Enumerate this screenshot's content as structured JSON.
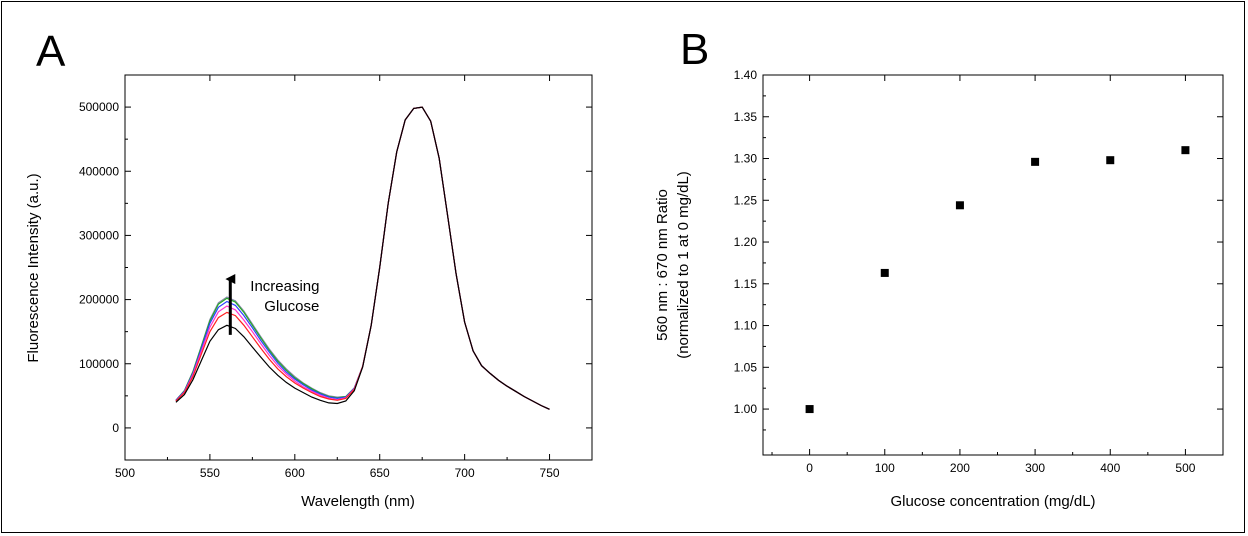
{
  "chart_data": [
    {
      "panel": "A",
      "type": "line",
      "xlabel": "Wavelength (nm)",
      "ylabel": "Fluorescence Intensity (a.u.)",
      "xlim": [
        500,
        775
      ],
      "ylim": [
        -50000,
        550000
      ],
      "xticks": [
        500,
        550,
        600,
        650,
        700,
        750
      ],
      "yticks": [
        0,
        100000,
        200000,
        300000,
        400000,
        500000
      ],
      "annotation": [
        "Increasing",
        "Glucose"
      ],
      "annotation_x": 562,
      "arrow_from": 145000,
      "arrow_to": 232000,
      "x": [
        530,
        535,
        540,
        545,
        550,
        555,
        560,
        565,
        570,
        575,
        580,
        585,
        590,
        595,
        600,
        605,
        610,
        615,
        620,
        625,
        630,
        635,
        640,
        645,
        650,
        655,
        660,
        665,
        670,
        675,
        680,
        685,
        690,
        695,
        700,
        705,
        710,
        715,
        720,
        725,
        730,
        735,
        740,
        745,
        750
      ],
      "series": [
        {
          "color": "#000000",
          "values": [
            40000,
            52000,
            75000,
            105000,
            135000,
            153000,
            160000,
            155000,
            142000,
            126000,
            110000,
            95000,
            82000,
            71000,
            62000,
            55000,
            48000,
            43000,
            39000,
            38000,
            42000,
            58000,
            95000,
            160000,
            250000,
            350000,
            430000,
            480000,
            498000,
            500000,
            478000,
            420000,
            330000,
            240000,
            165000,
            120000,
            97000,
            85000,
            74000,
            65000,
            57000,
            49000,
            42000,
            35000,
            29000
          ]
        },
        {
          "color": "#ff2020",
          "values": [
            42000,
            55000,
            80000,
            115000,
            150000,
            172000,
            180000,
            175000,
            160000,
            142000,
            124000,
            107000,
            92000,
            80000,
            70000,
            62000,
            55000,
            49000,
            45000,
            43000,
            46000,
            60000,
            96000,
            160000,
            250000,
            350000,
            430000,
            480000,
            498000,
            500000,
            478000,
            420000,
            330000,
            240000,
            165000,
            120000,
            97000,
            85000,
            74000,
            65000,
            57000,
            49000,
            42000,
            35000,
            29000
          ]
        },
        {
          "color": "#ff33cc",
          "values": [
            42000,
            56000,
            83000,
            120000,
            157000,
            181000,
            190000,
            184000,
            168000,
            150000,
            131000,
            113000,
            97000,
            84000,
            73000,
            64000,
            57000,
            51000,
            46000,
            44000,
            47000,
            61000,
            96000,
            160000,
            250000,
            350000,
            430000,
            480000,
            498000,
            500000,
            478000,
            420000,
            330000,
            240000,
            165000,
            120000,
            97000,
            85000,
            74000,
            65000,
            57000,
            49000,
            42000,
            35000,
            29000
          ]
        },
        {
          "color": "#2a40ff",
          "values": [
            43000,
            57000,
            85000,
            124000,
            163000,
            188000,
            197000,
            191000,
            175000,
            156000,
            136000,
            118000,
            101000,
            87000,
            76000,
            67000,
            59000,
            53000,
            48000,
            46000,
            48000,
            62000,
            96000,
            160000,
            250000,
            350000,
            430000,
            480000,
            498000,
            500000,
            478000,
            420000,
            330000,
            240000,
            165000,
            120000,
            97000,
            85000,
            74000,
            65000,
            57000,
            49000,
            42000,
            35000,
            29000
          ]
        },
        {
          "color": "#22aa22",
          "values": [
            43000,
            58000,
            87000,
            127000,
            167000,
            193000,
            202000,
            196000,
            180000,
            160000,
            140000,
            121000,
            104000,
            90000,
            78000,
            69000,
            61000,
            54000,
            49000,
            47000,
            49000,
            62000,
            96000,
            160000,
            250000,
            350000,
            430000,
            480000,
            498000,
            500000,
            478000,
            420000,
            330000,
            240000,
            165000,
            120000,
            97000,
            85000,
            74000,
            65000,
            57000,
            49000,
            42000,
            35000,
            29000
          ]
        },
        {
          "color": "#8888aa",
          "values": [
            43000,
            58000,
            88000,
            128000,
            169000,
            195000,
            204000,
            198000,
            182000,
            162000,
            142000,
            123000,
            106000,
            92000,
            80000,
            70000,
            62000,
            55000,
            50000,
            48000,
            49000,
            62000,
            96000,
            160000,
            250000,
            350000,
            430000,
            480000,
            498000,
            500000,
            478000,
            420000,
            330000,
            240000,
            165000,
            120000,
            97000,
            85000,
            74000,
            65000,
            57000,
            49000,
            42000,
            35000,
            29000
          ]
        }
      ]
    },
    {
      "panel": "B",
      "type": "scatter",
      "xlabel": "Glucose concentration (mg/dL)",
      "ylabel": [
        "560 nm : 670 nm Ratio",
        "(normalized to 1 at 0 mg/dL)"
      ],
      "xlim": [
        -62,
        550
      ],
      "ylim": [
        0.945,
        1.4
      ],
      "xticks": [
        0,
        100,
        200,
        300,
        400,
        500
      ],
      "yticks": [
        "1.00",
        "1.05",
        "1.10",
        "1.15",
        "1.20",
        "1.25",
        "1.30",
        "1.35",
        "1.40"
      ],
      "x": [
        0,
        100,
        200,
        300,
        400,
        500
      ],
      "values": [
        1.0,
        1.163,
        1.244,
        1.296,
        1.298,
        1.31
      ]
    }
  ]
}
